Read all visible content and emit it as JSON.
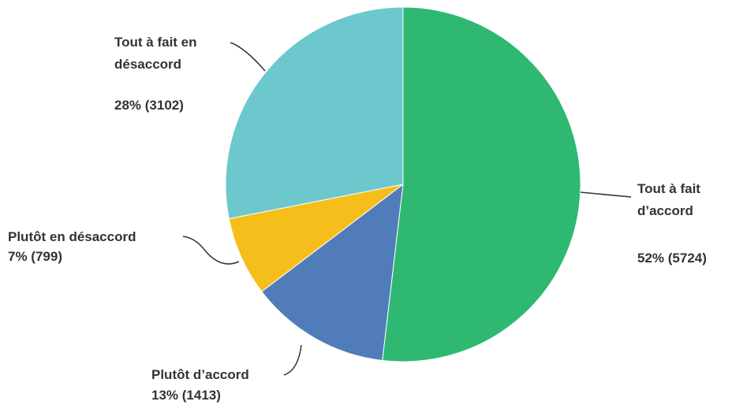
{
  "chart_data": {
    "type": "pie",
    "categories": [
      "Tout à fait d’accord",
      "Plutôt d’accord",
      "Plutôt en désaccord",
      "Tout à fait en désaccord"
    ],
    "values": [
      5724,
      1413,
      799,
      3102
    ],
    "value_labels": [
      "52% (5724)",
      "13% (1413)",
      "7% (799)",
      "28% (3102)"
    ],
    "colors": [
      "#2eb872",
      "#507cba",
      "#f6be1a",
      "#6cc8cc"
    ]
  }
}
